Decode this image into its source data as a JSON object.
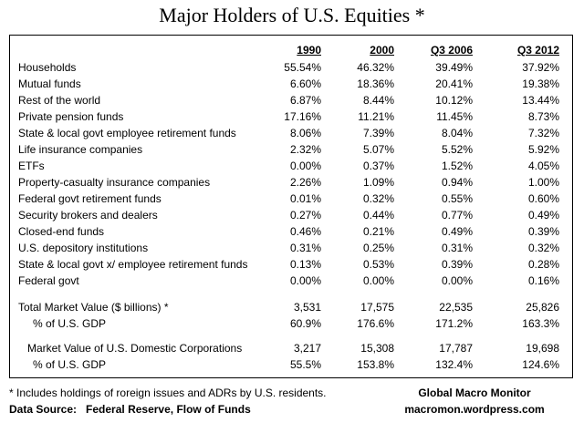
{
  "title": "Major Holders of U.S. Equities *",
  "columns": [
    "1990",
    "2000",
    "Q3 2006",
    "Q3 2012"
  ],
  "holders": [
    {
      "label": "Households",
      "values": [
        "55.54%",
        "46.32%",
        "39.49%",
        "37.92%"
      ]
    },
    {
      "label": "Mutual funds",
      "values": [
        "6.60%",
        "18.36%",
        "20.41%",
        "19.38%"
      ]
    },
    {
      "label": "Rest of the world",
      "values": [
        "6.87%",
        "8.44%",
        "10.12%",
        "13.44%"
      ]
    },
    {
      "label": "Private pension funds",
      "values": [
        "17.16%",
        "11.21%",
        "11.45%",
        "8.73%"
      ]
    },
    {
      "label": "State & local govt employee retirement funds",
      "values": [
        "8.06%",
        "7.39%",
        "8.04%",
        "7.32%"
      ]
    },
    {
      "label": "Life insurance companies",
      "values": [
        "2.32%",
        "5.07%",
        "5.52%",
        "5.92%"
      ]
    },
    {
      "label": "ETFs",
      "values": [
        "0.00%",
        "0.37%",
        "1.52%",
        "4.05%"
      ]
    },
    {
      "label": "Property-casualty insurance companies",
      "values": [
        "2.26%",
        "1.09%",
        "0.94%",
        "1.00%"
      ]
    },
    {
      "label": "Federal govt retirement funds",
      "values": [
        "0.01%",
        "0.32%",
        "0.55%",
        "0.60%"
      ]
    },
    {
      "label": "Security brokers and dealers",
      "values": [
        "0.27%",
        "0.44%",
        "0.77%",
        "0.49%"
      ]
    },
    {
      "label": "Closed-end funds",
      "values": [
        "0.46%",
        "0.21%",
        "0.49%",
        "0.39%"
      ]
    },
    {
      "label": "U.S. depository institutions",
      "values": [
        "0.31%",
        "0.25%",
        "0.31%",
        "0.32%"
      ]
    },
    {
      "label": "State & local govt x/ employee retirement funds",
      "values": [
        "0.13%",
        "0.53%",
        "0.39%",
        "0.28%"
      ]
    },
    {
      "label": "Federal govt",
      "values": [
        "0.00%",
        "0.00%",
        "0.00%",
        "0.16%"
      ]
    }
  ],
  "totals": {
    "market_value": {
      "label": "Total Market Value ($ billions) *",
      "values": [
        "3,531",
        "17,575",
        "22,535",
        "25,826"
      ]
    },
    "market_value_gdp": {
      "label": "% of U.S. GDP",
      "values": [
        "60.9%",
        "176.6%",
        "171.2%",
        "163.3%"
      ]
    },
    "domestic": {
      "label": "Market Value of U.S. Domestic Corporations",
      "values": [
        "3,217",
        "15,308",
        "17,787",
        "19,698"
      ]
    },
    "domestic_gdp": {
      "label": "% of U.S. GDP",
      "values": [
        "55.5%",
        "153.8%",
        "132.4%",
        "124.6%"
      ]
    }
  },
  "footnote": "* Includes holdings of roreign issues and ADRs by U.S. residents.",
  "source_label": "Data Source:",
  "source_text": "Federal Reserve, Flow of Funds",
  "brand_name": "Global Macro Monitor",
  "brand_url": "macromon.wordpress.com"
}
